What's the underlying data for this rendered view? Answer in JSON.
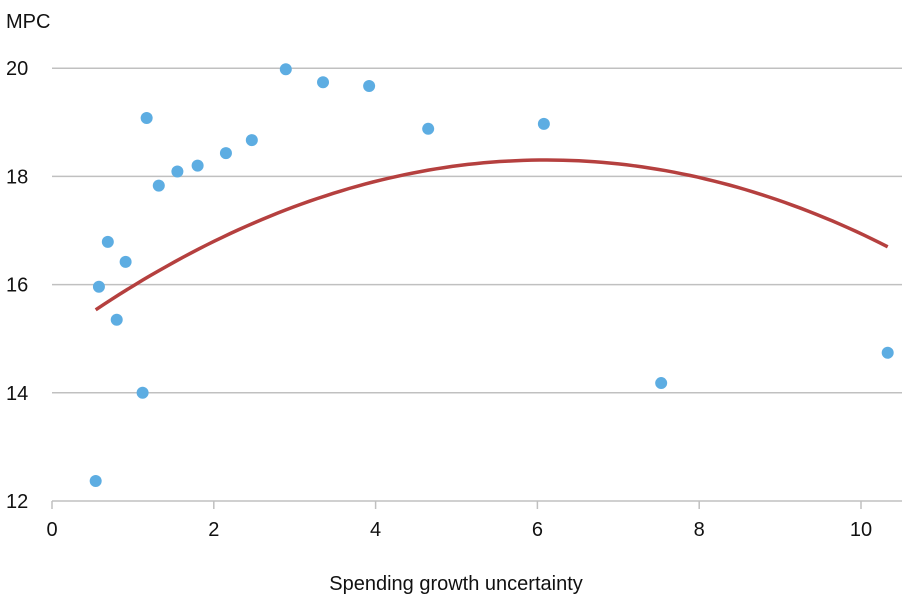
{
  "chart_data": {
    "type": "scatter",
    "title": "",
    "ylabel": "MPC",
    "xlabel": "Spending growth uncertainty",
    "xlim": [
      0,
      10.6
    ],
    "ylim": [
      12,
      20
    ],
    "xticks": [
      0,
      2,
      4,
      6,
      8,
      10
    ],
    "yticks": [
      12,
      14,
      16,
      18,
      20
    ],
    "grid": "horizontal",
    "colors": {
      "points": "#5dade2",
      "fit": "#b5403f",
      "grid": "#c0c0c0"
    },
    "points": [
      {
        "x": 0.54,
        "y": 12.37
      },
      {
        "x": 0.58,
        "y": 15.96
      },
      {
        "x": 0.69,
        "y": 16.79
      },
      {
        "x": 0.8,
        "y": 15.35
      },
      {
        "x": 0.91,
        "y": 16.42
      },
      {
        "x": 1.12,
        "y": 14.0
      },
      {
        "x": 1.17,
        "y": 19.08
      },
      {
        "x": 1.32,
        "y": 17.83
      },
      {
        "x": 1.55,
        "y": 18.09
      },
      {
        "x": 1.8,
        "y": 18.2
      },
      {
        "x": 2.15,
        "y": 18.43
      },
      {
        "x": 2.47,
        "y": 18.67
      },
      {
        "x": 2.89,
        "y": 19.98
      },
      {
        "x": 3.35,
        "y": 19.74
      },
      {
        "x": 3.92,
        "y": 19.67
      },
      {
        "x": 4.65,
        "y": 18.88
      },
      {
        "x": 6.08,
        "y": 18.97
      },
      {
        "x": 7.53,
        "y": 14.18
      },
      {
        "x": 10.33,
        "y": 14.74
      }
    ],
    "fit": {
      "type": "quadratic",
      "coefficients": [
        -0.0896,
        1.093,
        14.97
      ],
      "x_range": [
        0.54,
        10.33
      ]
    }
  }
}
